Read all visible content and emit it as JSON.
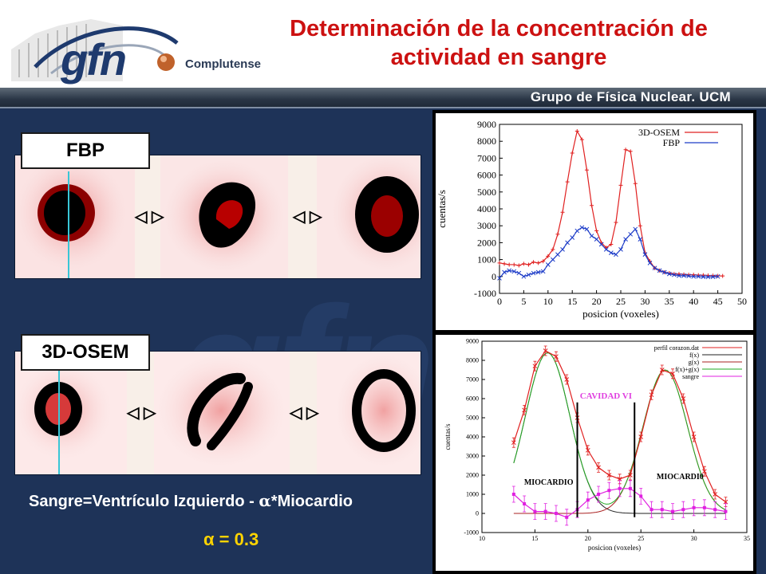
{
  "logo": {
    "text": "gfn",
    "subtext": "Complutense"
  },
  "header": {
    "title_line1": "Determinación de la concentración de",
    "title_line2": "actividad en sangre"
  },
  "band": {
    "text": "Grupo de Física Nuclear. UCM"
  },
  "panels": {
    "fbp_label": "FBP",
    "osem_label": "3D-OSEM",
    "arrow_glyph": "◁ ▷"
  },
  "formula": {
    "text": "Sangre=Ventrículo Izquierdo - ",
    "alpha": "α",
    "suffix": "*Miocardio",
    "alpha_value": "α = 0.3"
  },
  "colors": {
    "title": "#cc1111",
    "background": "#1e3358",
    "accent_yellow": "#ffd400",
    "red_series": "#e02020",
    "blue_series": "#1d3cc8"
  },
  "chart_data": [
    {
      "type": "line",
      "xlabel": "posicion (voxeles)",
      "ylabel": "cuentas/s",
      "xlim": [
        0,
        50
      ],
      "ylim": [
        -1000,
        9000
      ],
      "xticks": [
        "0",
        "5",
        "10",
        "15",
        "20",
        "25",
        "30",
        "35",
        "40",
        "45",
        "50"
      ],
      "yticks": [
        "-1000",
        "0",
        "1000",
        "2000",
        "3000",
        "4000",
        "5000",
        "6000",
        "7000",
        "8000",
        "9000"
      ],
      "legend": "top-right",
      "series": [
        {
          "name": "3D-OSEM",
          "color": "#e02020",
          "x": [
            0,
            1,
            2,
            3,
            4,
            5,
            6,
            7,
            8,
            9,
            10,
            11,
            12,
            13,
            14,
            15,
            16,
            17,
            18,
            19,
            20,
            21,
            22,
            23,
            24,
            25,
            26,
            27,
            28,
            29,
            30,
            31,
            32,
            33,
            34,
            35,
            36,
            37,
            38,
            39,
            40,
            41,
            42,
            43,
            44,
            45,
            46
          ],
          "y": [
            800,
            750,
            700,
            700,
            650,
            750,
            700,
            850,
            800,
            900,
            1200,
            1600,
            2500,
            3800,
            5600,
            7300,
            8600,
            8100,
            6300,
            4200,
            2700,
            2000,
            1700,
            1900,
            3200,
            5400,
            7500,
            7400,
            5500,
            3000,
            1400,
            900,
            500,
            350,
            250,
            200,
            150,
            150,
            120,
            100,
            100,
            80,
            80,
            60,
            50,
            40,
            30
          ]
        },
        {
          "name": "FBP",
          "color": "#1d3cc8",
          "x": [
            0,
            1,
            2,
            3,
            4,
            5,
            6,
            7,
            8,
            9,
            10,
            11,
            12,
            13,
            14,
            15,
            16,
            17,
            18,
            19,
            20,
            21,
            22,
            23,
            24,
            25,
            26,
            27,
            28,
            29,
            30,
            31,
            32,
            33,
            34,
            35,
            36,
            37,
            38,
            39,
            40,
            41,
            42,
            43,
            44,
            45
          ],
          "y": [
            -100,
            250,
            350,
            300,
            200,
            0,
            100,
            200,
            250,
            300,
            700,
            1000,
            1300,
            1600,
            2000,
            2300,
            2700,
            2900,
            2800,
            2400,
            2200,
            1900,
            1600,
            1400,
            1300,
            1600,
            2200,
            2500,
            2800,
            2200,
            1300,
            800,
            500,
            350,
            250,
            150,
            100,
            50,
            50,
            30,
            0,
            0,
            -20,
            -30,
            -20,
            0
          ]
        }
      ]
    },
    {
      "type": "line",
      "xlabel": "posicion (voxeles)",
      "ylabel": "cuentas/s",
      "xlim": [
        10,
        35
      ],
      "ylim": [
        -1000,
        9000
      ],
      "xticks": [
        "10",
        "15",
        "20",
        "25",
        "30",
        "35"
      ],
      "yticks": [
        "-1000",
        "0",
        "1000",
        "2000",
        "3000",
        "4000",
        "5000",
        "6000",
        "7000",
        "8000",
        "9000"
      ],
      "legend": "top-right",
      "legend_entries": [
        "perfil corazon.dat",
        "f(x)",
        "g(x)",
        "f(x)+g(x)",
        "sangre"
      ],
      "annotations": [
        "CAVIDAD VI",
        "MIOCARDIO",
        "MIOCARDI0"
      ],
      "series": [
        {
          "name": "perfil corazon.dat",
          "color": "#e02020",
          "x": [
            13,
            14,
            15,
            16,
            17,
            18,
            19,
            20,
            21,
            22,
            23,
            24,
            25,
            26,
            27,
            28,
            29,
            30,
            31,
            32,
            33
          ],
          "y": [
            3700,
            5400,
            7700,
            8500,
            8200,
            7000,
            5000,
            3300,
            2400,
            2000,
            1800,
            2000,
            4000,
            6200,
            7500,
            7300,
            6000,
            4000,
            2200,
            1000,
            600
          ]
        },
        {
          "name": "f(x)",
          "color": "#222222"
        },
        {
          "name": "g(x)",
          "color": "#aa2222"
        },
        {
          "name": "f(x)+g(x)",
          "color": "#22aa22"
        },
        {
          "name": "sangre",
          "color": "#e020e0",
          "x": [
            13,
            14,
            15,
            16,
            17,
            18,
            19,
            20,
            21,
            22,
            23,
            24,
            25,
            26,
            27,
            28,
            29,
            30,
            31,
            32,
            33
          ],
          "y": [
            1000,
            500,
            100,
            100,
            0,
            -200,
            200,
            700,
            1000,
            1200,
            1300,
            1300,
            900,
            200,
            200,
            100,
            200,
            300,
            300,
            200,
            100
          ]
        }
      ]
    }
  ]
}
